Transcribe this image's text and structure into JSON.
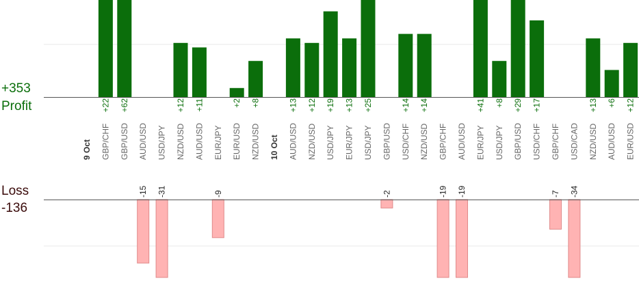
{
  "summary": {
    "profit_total": "+353",
    "profit_label": "Profit",
    "loss_label": "Loss",
    "loss_total": "-136"
  },
  "colors": {
    "profit_bar": "#0b6e0b",
    "profit_text": "#0a6e0a",
    "loss_bar": "#ffb3b3",
    "loss_border": "#e08a8a",
    "loss_text": "#222222",
    "axis": "#555555",
    "grid": "#e8e8e8",
    "pair_text": "#666666",
    "date_text": "#333333"
  },
  "chart_data": {
    "type": "bar",
    "categories": [
      {
        "kind": "date",
        "label": "9 Oct"
      },
      {
        "kind": "pair",
        "label": "GBP/CHF",
        "value": 22,
        "display": "+22"
      },
      {
        "kind": "pair",
        "label": "GBP/USD",
        "value": 62,
        "display": "+62"
      },
      {
        "kind": "pair",
        "label": "AUD/USD",
        "value": -15,
        "display": "-15"
      },
      {
        "kind": "pair",
        "label": "USD/JPY",
        "value": -31,
        "display": "-31"
      },
      {
        "kind": "pair",
        "label": "NZD/USD",
        "value": 12,
        "display": "+12"
      },
      {
        "kind": "pair",
        "label": "AUD/USD",
        "value": 11,
        "display": "+11"
      },
      {
        "kind": "pair",
        "label": "EUR/JPY",
        "value": -9,
        "display": "-9"
      },
      {
        "kind": "pair",
        "label": "EUR/USD",
        "value": 2,
        "display": "+2"
      },
      {
        "kind": "pair",
        "label": "NZD/USD",
        "value": 8,
        "display": "+8"
      },
      {
        "kind": "date",
        "label": "10 Oct"
      },
      {
        "kind": "pair",
        "label": "AUD/USD",
        "value": 13,
        "display": "+13"
      },
      {
        "kind": "pair",
        "label": "NZD/USD",
        "value": 12,
        "display": "+12"
      },
      {
        "kind": "pair",
        "label": "USD/JPY",
        "value": 19,
        "display": "+19"
      },
      {
        "kind": "pair",
        "label": "EUR/JPY",
        "value": 13,
        "display": "+13"
      },
      {
        "kind": "pair",
        "label": "USD/JPY",
        "value": 25,
        "display": "+25"
      },
      {
        "kind": "pair",
        "label": "GBP/USD",
        "value": -2,
        "display": "-2"
      },
      {
        "kind": "pair",
        "label": "USD/CHF",
        "value": 14,
        "display": "+14"
      },
      {
        "kind": "pair",
        "label": "NZD/USD",
        "value": 14,
        "display": "+14"
      },
      {
        "kind": "pair",
        "label": "GBP/CHF",
        "value": -19,
        "display": "-19"
      },
      {
        "kind": "pair",
        "label": "AUD/USD",
        "value": -19,
        "display": "-19"
      },
      {
        "kind": "pair",
        "label": "EUR/JPY",
        "value": 41,
        "display": "+41"
      },
      {
        "kind": "pair",
        "label": "USD/JPY",
        "value": 8,
        "display": "+8"
      },
      {
        "kind": "pair",
        "label": "GBP/USD",
        "value": 29,
        "display": "+29"
      },
      {
        "kind": "pair",
        "label": "USD/CHF",
        "value": 17,
        "display": "+17"
      },
      {
        "kind": "pair",
        "label": "GBP/CHF",
        "value": -7,
        "display": "-7"
      },
      {
        "kind": "pair",
        "label": "USD/CAD",
        "value": -34,
        "display": "-34"
      },
      {
        "kind": "pair",
        "label": "NZD/USD",
        "value": 13,
        "display": "+13"
      },
      {
        "kind": "pair",
        "label": "AUD/USD",
        "value": 6,
        "display": "+6"
      },
      {
        "kind": "pair",
        "label": "EUR/USD",
        "value": 12,
        "display": "+12"
      }
    ],
    "profit_axis_clip": 20,
    "loss_axis_clip": -20,
    "grid": true
  }
}
